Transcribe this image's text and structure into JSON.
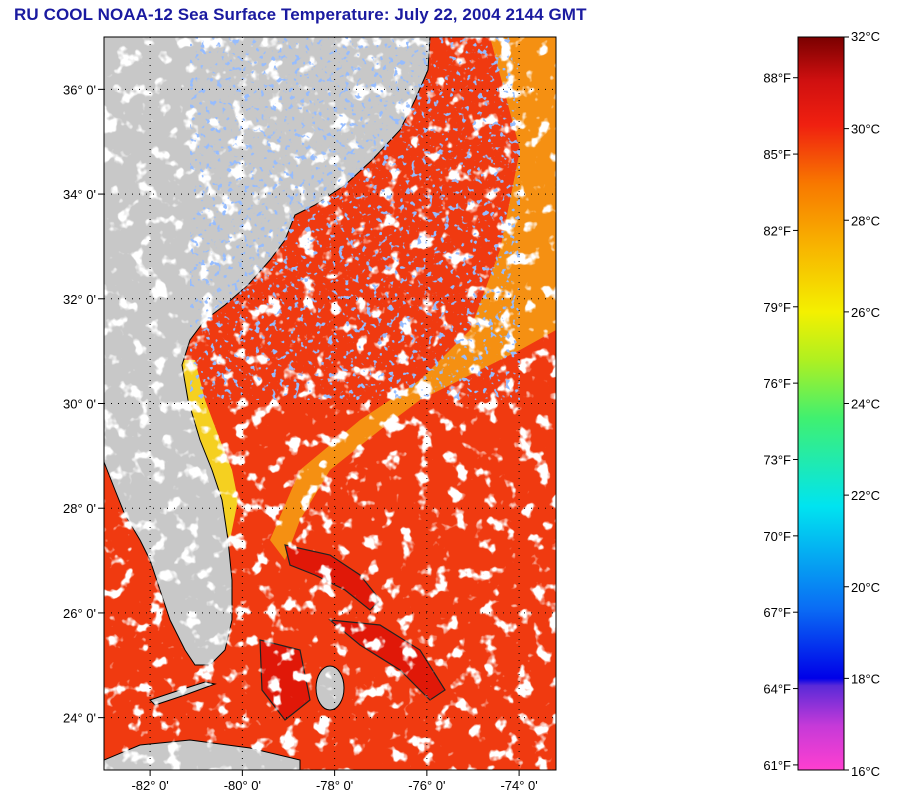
{
  "title": "RU COOL  NOAA-12  Sea Surface Temperature:  July 22, 2004 2144 GMT",
  "map": {
    "lon_range": [
      -83,
      -73.2
    ],
    "lat_range": [
      23,
      37
    ],
    "lat_ticks": [
      {
        "value": 36,
        "label": "36° 0'"
      },
      {
        "value": 34,
        "label": "34° 0'"
      },
      {
        "value": 32,
        "label": "32° 0'"
      },
      {
        "value": 30,
        "label": "30° 0'"
      },
      {
        "value": 28,
        "label": "28° 0'"
      },
      {
        "value": 26,
        "label": "26° 0'"
      },
      {
        "value": 24,
        "label": "24° 0'"
      }
    ],
    "lon_ticks": [
      {
        "value": -82,
        "label": "-82° 0'"
      },
      {
        "value": -80,
        "label": "-80° 0'"
      },
      {
        "value": -78,
        "label": "-78° 0'"
      },
      {
        "value": -76,
        "label": "-76° 0'"
      },
      {
        "value": -74,
        "label": "-74° 0'"
      }
    ],
    "colors": {
      "land": "#c8c8c8",
      "ocean_warm": "#f03a10",
      "ocean_hot": "#e01808",
      "gulf_stream": "#f59012",
      "nearshore": "#f5d020",
      "cloud": "#ffffff"
    }
  },
  "colorbar": {
    "range_c": [
      16,
      32
    ],
    "celsius_labels": [
      "32°C",
      "30°C",
      "28°C",
      "26°C",
      "24°C",
      "22°C",
      "20°C",
      "18°C",
      "16°C"
    ],
    "celsius_values": [
      32,
      30,
      28,
      26,
      24,
      22,
      20,
      18,
      16
    ],
    "fahrenheit_labels": [
      "88°F",
      "85°F",
      "82°F",
      "79°F",
      "76°F",
      "73°F",
      "70°F",
      "67°F",
      "64°F",
      "61°F"
    ],
    "fahrenheit_values": [
      88,
      85,
      82,
      79,
      76,
      73,
      70,
      67,
      64,
      61
    ]
  }
}
